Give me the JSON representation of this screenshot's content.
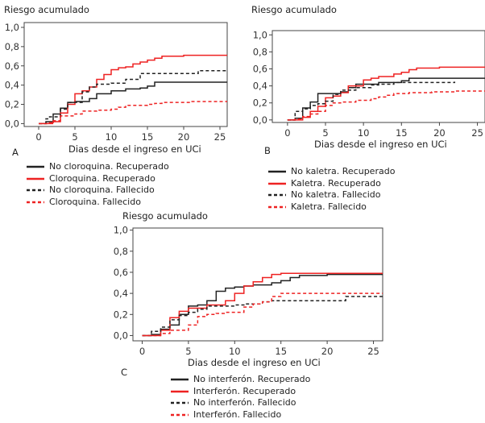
{
  "colors": {
    "black": "#222222",
    "red": "#ee2222"
  },
  "chart_data": [
    {
      "type": "line",
      "step": true,
      "panel_label": "A",
      "ylabel": "Riesgo acumulado",
      "xlabel": "Dias desde el ingreso en UCi",
      "xlim": [
        -2,
        26
      ],
      "ylim": [
        -0.03,
        1.05
      ],
      "xticks": [
        0,
        5,
        10,
        15,
        20,
        25
      ],
      "yticks": [
        "0,0",
        "0,2",
        "0,4",
        "0,6",
        "0,8",
        "1,0"
      ],
      "series": [
        {
          "name": "No cloroquina. Recuperado",
          "color": "black",
          "dash": false,
          "x": [
            0,
            1,
            2,
            3,
            4,
            5,
            7,
            8,
            10,
            12,
            14,
            15,
            16,
            26
          ],
          "y": [
            0,
            0.02,
            0.1,
            0.16,
            0.22,
            0.23,
            0.26,
            0.31,
            0.34,
            0.36,
            0.37,
            0.39,
            0.43,
            0.43
          ]
        },
        {
          "name": "Cloroquina. Recuperado",
          "color": "red",
          "dash": false,
          "x": [
            0,
            1.5,
            2,
            3,
            4,
            5,
            6,
            7,
            8,
            9,
            10,
            11,
            12,
            13,
            14,
            15,
            16,
            17,
            20,
            26
          ],
          "y": [
            0,
            0.01,
            0.02,
            0.11,
            0.2,
            0.31,
            0.34,
            0.38,
            0.46,
            0.51,
            0.56,
            0.58,
            0.59,
            0.62,
            0.64,
            0.66,
            0.68,
            0.7,
            0.71,
            0.71
          ]
        },
        {
          "name": "No cloroquina. Fallecido",
          "color": "black",
          "dash": true,
          "x": [
            0,
            1,
            1.5,
            3,
            4,
            6,
            7,
            8,
            10,
            12,
            14,
            22,
            26
          ],
          "y": [
            0,
            0.05,
            0.07,
            0.15,
            0.22,
            0.33,
            0.38,
            0.41,
            0.42,
            0.46,
            0.52,
            0.55,
            0.55
          ]
        },
        {
          "name": "Cloroquina. Fallecido",
          "color": "red",
          "dash": true,
          "x": [
            0,
            2,
            3,
            5,
            6,
            8,
            10,
            11,
            12,
            15,
            16,
            17,
            21,
            26
          ],
          "y": [
            0,
            0.03,
            0.08,
            0.1,
            0.13,
            0.14,
            0.15,
            0.17,
            0.19,
            0.2,
            0.21,
            0.22,
            0.23,
            0.23
          ]
        }
      ]
    },
    {
      "type": "line",
      "step": true,
      "panel_label": "B",
      "ylabel": "Riesgo acumulado",
      "xlabel": "Dias desde el ingreso en UCi",
      "xlim": [
        -2,
        26
      ],
      "ylim": [
        -0.03,
        1.05
      ],
      "xticks": [
        0,
        5,
        10,
        15,
        20,
        25
      ],
      "yticks": [
        "0,0",
        "0,2",
        "0,4",
        "0,6",
        "0,8",
        "1,0"
      ],
      "series": [
        {
          "name": "No kaletra. Recuperado",
          "color": "black",
          "dash": false,
          "x": [
            0,
            1,
            2,
            3,
            4,
            7,
            8,
            9,
            12,
            15,
            16,
            26
          ],
          "y": [
            0,
            0.02,
            0.14,
            0.21,
            0.31,
            0.33,
            0.38,
            0.42,
            0.44,
            0.46,
            0.49,
            0.49
          ]
        },
        {
          "name": "Kaletra. Recuperado",
          "color": "red",
          "dash": false,
          "x": [
            0,
            2,
            3,
            4,
            5,
            6,
            7,
            8,
            10,
            11,
            12,
            14,
            15,
            16,
            17,
            20,
            26
          ],
          "y": [
            0,
            0.03,
            0.1,
            0.16,
            0.26,
            0.28,
            0.32,
            0.4,
            0.47,
            0.49,
            0.51,
            0.54,
            0.56,
            0.59,
            0.61,
            0.62,
            0.62
          ]
        },
        {
          "name": "No kaletra. Fallecido",
          "color": "black",
          "dash": true,
          "x": [
            0,
            1,
            2,
            3,
            4,
            5,
            6,
            7,
            9,
            11,
            12,
            14,
            22
          ],
          "y": [
            0,
            0.1,
            0.13,
            0.17,
            0.19,
            0.22,
            0.3,
            0.35,
            0.38,
            0.41,
            0.42,
            0.44,
            0.45
          ]
        },
        {
          "name": "Kaletra. Fallecido",
          "color": "red",
          "dash": true,
          "x": [
            0,
            1,
            2,
            3,
            4,
            5,
            6,
            7,
            9,
            11,
            12,
            13,
            14,
            16,
            19,
            22,
            26
          ],
          "y": [
            0,
            0.01,
            0.04,
            0.07,
            0.1,
            0.17,
            0.2,
            0.21,
            0.23,
            0.25,
            0.27,
            0.29,
            0.31,
            0.32,
            0.33,
            0.34,
            0.34
          ]
        }
      ]
    },
    {
      "type": "line",
      "step": true,
      "panel_label": "C",
      "ylabel": "Riesgo acumulado",
      "xlabel": "Dias desde el ingreso en UCi",
      "xlim": [
        -1,
        26
      ],
      "ylim": [
        -0.05,
        1.02
      ],
      "xticks": [
        0,
        5,
        10,
        15,
        20,
        25
      ],
      "yticks": [
        "0,0",
        "0,2",
        "0,4",
        "0,6",
        "0,8",
        "1,0"
      ],
      "series": [
        {
          "name": "No interferón. Recuperado",
          "color": "black",
          "dash": false,
          "x": [
            0,
            1,
            2,
            3,
            4,
            5,
            6,
            7,
            8,
            9,
            10,
            11,
            12,
            14,
            15,
            16,
            17,
            20,
            26
          ],
          "y": [
            0,
            0.01,
            0.06,
            0.1,
            0.2,
            0.28,
            0.29,
            0.33,
            0.42,
            0.45,
            0.46,
            0.47,
            0.48,
            0.5,
            0.52,
            0.55,
            0.57,
            0.58,
            0.58
          ]
        },
        {
          "name": "Interferón. Recuperado",
          "color": "red",
          "dash": false,
          "x": [
            0,
            2,
            3,
            4,
            5,
            7,
            9,
            10,
            11,
            12,
            13,
            14,
            15,
            26
          ],
          "y": [
            0,
            0.05,
            0.17,
            0.23,
            0.26,
            0.29,
            0.33,
            0.4,
            0.47,
            0.51,
            0.55,
            0.58,
            0.59,
            0.59
          ]
        },
        {
          "name": "No interferón. Fallecido",
          "color": "black",
          "dash": true,
          "x": [
            0,
            1,
            2,
            3,
            4,
            5,
            6,
            7,
            10,
            11,
            13,
            14,
            22,
            26
          ],
          "y": [
            0,
            0.04,
            0.08,
            0.15,
            0.19,
            0.22,
            0.25,
            0.28,
            0.29,
            0.3,
            0.32,
            0.33,
            0.37,
            0.37
          ]
        },
        {
          "name": "Interferón. Fallecido",
          "color": "red",
          "dash": true,
          "x": [
            0,
            2,
            3,
            5,
            6,
            7,
            8,
            9,
            11,
            12,
            13,
            14,
            15,
            26
          ],
          "y": [
            0,
            0.02,
            0.05,
            0.1,
            0.18,
            0.2,
            0.21,
            0.22,
            0.27,
            0.3,
            0.32,
            0.37,
            0.4,
            0.4
          ]
        }
      ]
    }
  ]
}
